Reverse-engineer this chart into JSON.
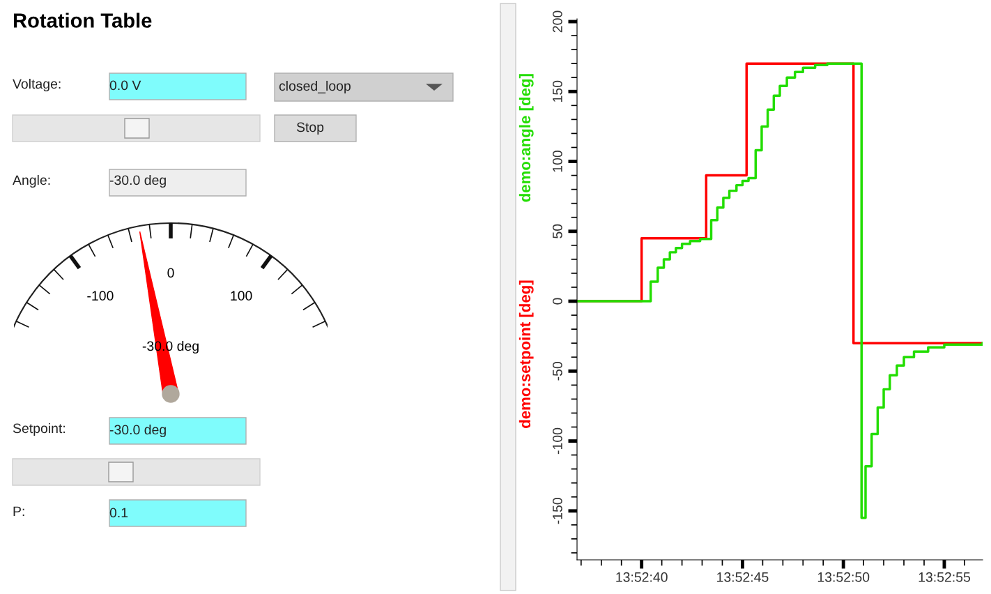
{
  "chart_data": [
    {
      "type": "other",
      "title": "Rotation Table",
      "annotations": [
        "Voltage:",
        "0.0 V",
        "closed_loop",
        "Stop",
        "Angle:",
        "-30.0 deg",
        "Setpoint:",
        "-30.0 deg",
        "P:",
        "0.1"
      ]
    },
    {
      "type": "other",
      "values": [
        -30
      ],
      "value_labels": [
        "-30.0 deg"
      ],
      "color": "#ff0000",
      "annotations": [
        "-100",
        "0",
        "100"
      ]
    },
    {
      "type": "step",
      "legend": false,
      "grid": false,
      "xlim": [
        13.876889,
        13.882473
      ],
      "ylim": [
        -185,
        202
      ],
      "xticks": [
        {
          "value": 13.876945,
          "label": null
        },
        {
          "value": 13.877223,
          "label": null
        },
        {
          "value": 13.8775,
          "label": null
        },
        {
          "value": 13.877778,
          "label": "13:52:40"
        },
        {
          "value": 13.878056,
          "label": null
        },
        {
          "value": 13.878334,
          "label": null
        },
        {
          "value": 13.878611,
          "label": null
        },
        {
          "value": 13.878889,
          "label": null
        },
        {
          "value": 13.879167,
          "label": "13:52:45"
        },
        {
          "value": 13.879445,
          "label": null
        },
        {
          "value": 13.879723,
          "label": null
        },
        {
          "value": 13.88,
          "label": null
        },
        {
          "value": 13.880278,
          "label": null
        },
        {
          "value": 13.880556,
          "label": "13:52:50"
        },
        {
          "value": 13.880834,
          "label": null
        },
        {
          "value": 13.881111,
          "label": null
        },
        {
          "value": 13.881389,
          "label": null
        },
        {
          "value": 13.881667,
          "label": null
        },
        {
          "value": 13.881945,
          "label": "13:52:55"
        },
        {
          "value": 13.882223,
          "label": null
        }
      ],
      "yticks": [
        {
          "value": -180,
          "label": null
        },
        {
          "value": -170,
          "label": null
        },
        {
          "value": -160,
          "label": null
        },
        -150,
        {
          "value": -140,
          "label": null
        },
        {
          "value": -130,
          "label": null
        },
        {
          "value": -120,
          "label": null
        },
        {
          "value": -110,
          "label": null
        },
        -100,
        {
          "value": -90,
          "label": null
        },
        {
          "value": -80,
          "label": null
        },
        {
          "value": -70,
          "label": null
        },
        {
          "value": -60,
          "label": null
        },
        -50,
        {
          "value": -40,
          "label": null
        },
        {
          "value": -30,
          "label": null
        },
        {
          "value": -20,
          "label": null
        },
        {
          "value": -10,
          "label": null
        },
        0,
        {
          "value": 10,
          "label": null
        },
        {
          "value": 20,
          "label": null
        },
        {
          "value": 30,
          "label": null
        },
        {
          "value": 40,
          "label": null
        },
        50,
        {
          "value": 60,
          "label": null
        },
        {
          "value": 70,
          "label": null
        },
        {
          "value": 80,
          "label": null
        },
        {
          "value": 90,
          "label": null
        },
        100,
        {
          "value": 110,
          "label": null
        },
        {
          "value": 120,
          "label": null
        },
        {
          "value": 130,
          "label": null
        },
        {
          "value": 140,
          "label": null
        },
        150,
        {
          "value": 160,
          "label": null
        },
        {
          "value": 170,
          "label": null
        },
        {
          "value": 180,
          "label": null
        },
        {
          "value": 190,
          "label": null
        },
        200
      ],
      "series": [
        {
          "name": "demo:setpoint [deg]",
          "color": "#ff0000",
          "x": [
            13.876889,
            13.877778,
            13.878667,
            13.879223,
            13.880695,
            13.882473
          ],
          "values": [
            0,
            45,
            90,
            170,
            -30,
            -30
          ]
        },
        {
          "name": "demo:angle [deg]",
          "color": "#22dd00",
          "x": [
            13.876889,
            13.877903,
            13.878,
            13.878084,
            13.878167,
            13.87825,
            13.878334,
            13.878445,
            13.878584,
            13.878736,
            13.87882,
            13.878903,
            13.878986,
            13.879084,
            13.879167,
            13.87925,
            13.879348,
            13.879431,
            13.879514,
            13.879598,
            13.879681,
            13.879778,
            13.879889,
            13.88,
            13.880167,
            13.880334,
            13.880806,
            13.880861,
            13.880945,
            13.881028,
            13.881111,
            13.881195,
            13.881292,
            13.881389,
            13.881528,
            13.881723,
            13.881945,
            13.882473
          ],
          "values": [
            0,
            14,
            24,
            30,
            35,
            38,
            41,
            43,
            44.5,
            58,
            67,
            74,
            79,
            83,
            86,
            88,
            108,
            125,
            137,
            147,
            154,
            160,
            164,
            167,
            169,
            170,
            -155,
            -118,
            -95,
            -76,
            -63,
            -53,
            -46,
            -40,
            -36,
            -33,
            -31,
            -30
          ]
        }
      ]
    }
  ]
}
